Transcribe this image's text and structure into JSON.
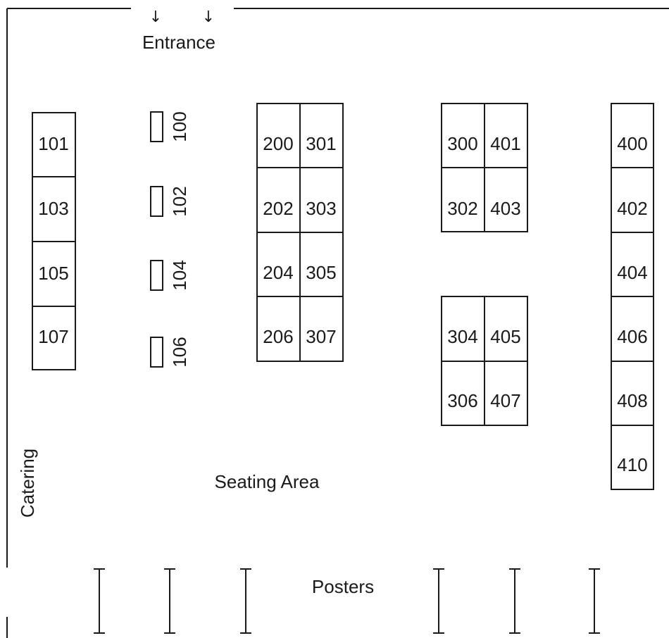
{
  "labels": {
    "entrance": "Entrance",
    "catering": "Catering",
    "seating_area": "Seating Area",
    "posters": "Posters"
  },
  "icons": {
    "entrance_arrows": [
      "down-arrow-icon",
      "down-arrow-icon"
    ],
    "poster_stands": [
      "poster-stand-icon",
      "poster-stand-icon",
      "poster-stand-icon",
      "poster-stand-icon",
      "poster-stand-icon",
      "poster-stand-icon"
    ]
  },
  "booths": {
    "left_column": [
      "101",
      "103",
      "105",
      "107"
    ],
    "small_column": [
      "100",
      "102",
      "104",
      "106"
    ],
    "block_a_left": [
      "200",
      "202",
      "204",
      "206"
    ],
    "block_a_right": [
      "301",
      "303",
      "305",
      "307"
    ],
    "block_b_left": [
      "300",
      "302"
    ],
    "block_b_right": [
      "401",
      "403"
    ],
    "block_c_left": [
      "304",
      "306"
    ],
    "block_c_right": [
      "405",
      "407"
    ],
    "right_column": [
      "400",
      "402",
      "404",
      "406",
      "408",
      "410"
    ]
  },
  "colors": {
    "ink": "#1a1a1a",
    "background": "#ffffff"
  }
}
